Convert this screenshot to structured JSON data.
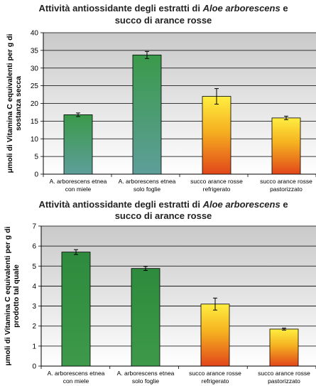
{
  "chart_data": [
    {
      "type": "bar",
      "title_parts": [
        {
          "text": "Attività antiossidante degli estratti di ",
          "italic": false
        },
        {
          "text": "Aloe arborescens",
          "italic": true
        },
        {
          "text": " e",
          "italic": false
        }
      ],
      "title_line2": "succo di arance rosse",
      "ylabel_lines": [
        "μmoli di Vitamina C equivalenti per g di",
        "sostanza secca"
      ],
      "ylim": [
        0,
        40
      ],
      "yticks": [
        "0",
        "5",
        "10",
        "15",
        "20",
        "25",
        "30",
        "35",
        "40"
      ],
      "categories": [
        [
          "A. arborescens etnea",
          "con miele"
        ],
        [
          "A. arborescens etnea",
          "solo foglie"
        ],
        [
          "succo arance rosse",
          "refrigerato"
        ],
        [
          "succo arance rosse",
          "pastorizzato"
        ]
      ],
      "values": [
        16.8,
        33.7,
        22.0,
        15.9
      ],
      "errors": [
        0.5,
        1.0,
        2.2,
        0.5
      ],
      "bar_styles": [
        "green",
        "green",
        "orange",
        "orange"
      ],
      "colors": {
        "plot_top": "#c9c9c9",
        "plot_bottom": "#ffffff",
        "green_top": "#3a9a4a",
        "green_bottom": "#5e9e9a",
        "orange_top": "#ffee40",
        "orange_mid": "#f5b020",
        "orange_bottom": "#e2461a"
      }
    },
    {
      "type": "bar",
      "title_parts": [
        {
          "text": "Attività antiossidante degli estratti di ",
          "italic": false
        },
        {
          "text": "Aloe arborescens",
          "italic": true
        },
        {
          "text": " e",
          "italic": false
        }
      ],
      "title_line2": "succo di arance rosse",
      "ylabel_lines": [
        "μmoli di Vitamina C equivalenti per g di",
        "prodotto tal quale"
      ],
      "ylim": [
        0,
        7
      ],
      "yticks": [
        "0",
        "1",
        "2",
        "3",
        "4",
        "5",
        "6",
        "7"
      ],
      "categories": [
        [
          "A. arborescens etnea",
          "con miele"
        ],
        [
          "A. arborescens etnea",
          "solo foglie"
        ],
        [
          "succo arance rosse",
          "refrigerato"
        ],
        [
          "succo arance rosse",
          "pastorizzato"
        ]
      ],
      "values": [
        5.7,
        4.88,
        3.1,
        1.85
      ],
      "errors": [
        0.12,
        0.1,
        0.3,
        0.05
      ],
      "bar_styles": [
        "green",
        "green",
        "orange",
        "orange"
      ],
      "colors": {
        "plot_top": "#c9c9c9",
        "plot_bottom": "#ffffff",
        "green_top": "#2e8a3c",
        "green_bottom": "#3e9a4a",
        "orange_top": "#ffee40",
        "orange_mid": "#f5b020",
        "orange_bottom": "#e2461a"
      }
    }
  ]
}
